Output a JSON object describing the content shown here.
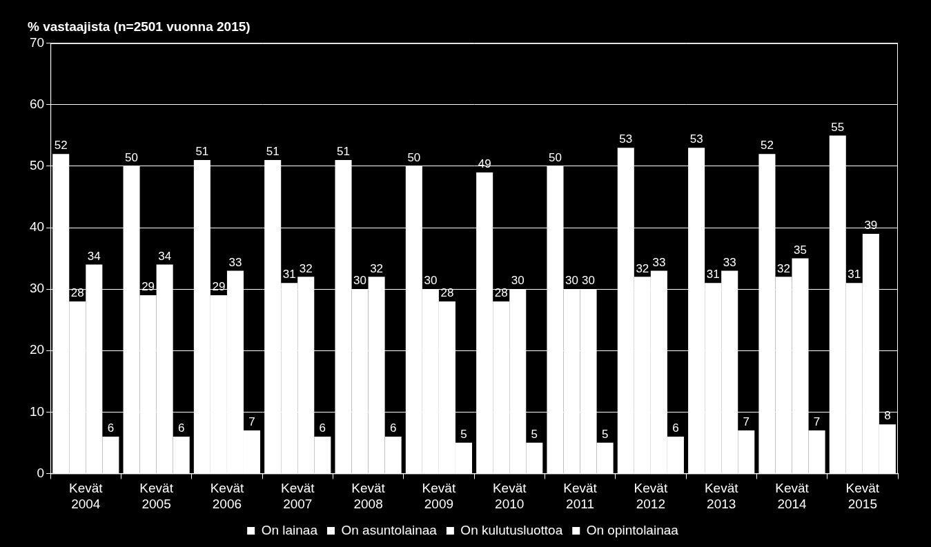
{
  "chart_data": {
    "type": "bar",
    "title": "% vastaajista (n=2501 vuonna 2015)",
    "categories": [
      "Kevät 2004",
      "Kevät 2005",
      "Kevät 2006",
      "Kevät 2007",
      "Kevät 2008",
      "Kevät 2009",
      "Kevät 2010",
      "Kevät 2011",
      "Kevät 2012",
      "Kevät 2013",
      "Kevät 2014",
      "Kevät 2015"
    ],
    "series": [
      {
        "name": "On lainaa",
        "color": "#ffffff",
        "values": [
          52,
          50,
          51,
          51,
          51,
          50,
          49,
          50,
          53,
          53,
          52,
          55
        ]
      },
      {
        "name": "On asuntolainaa",
        "color": "#ffffff",
        "values": [
          28,
          29,
          29,
          31,
          30,
          30,
          28,
          30,
          32,
          31,
          32,
          31
        ]
      },
      {
        "name": "On kulutusluottoa",
        "color": "#ffffff",
        "values": [
          34,
          34,
          33,
          32,
          32,
          28,
          30,
          30,
          33,
          33,
          35,
          39
        ]
      },
      {
        "name": "On opintolainaa",
        "color": "#ffffff",
        "values": [
          6,
          6,
          7,
          6,
          6,
          5,
          5,
          5,
          6,
          7,
          7,
          8
        ]
      }
    ],
    "ylim": [
      0,
      70
    ],
    "yticks": [
      0,
      10,
      20,
      30,
      40,
      50,
      60,
      70
    ],
    "grid": true,
    "data_labels": true,
    "legend": "bottom"
  }
}
